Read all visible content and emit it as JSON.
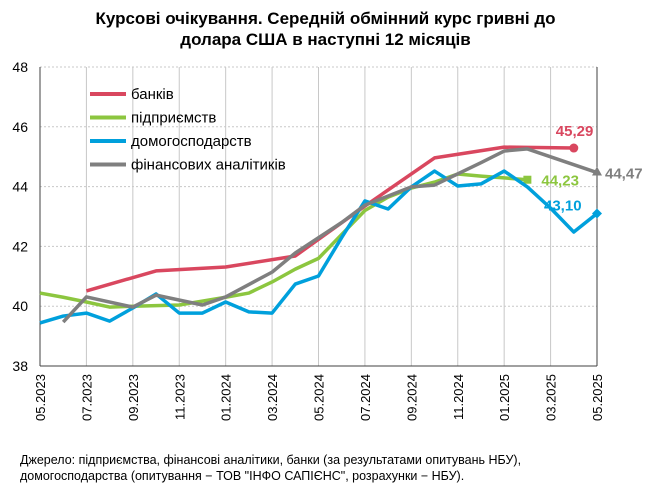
{
  "title_lines": [
    "Курсові очікування. Середній обмінний курс гривні до",
    "долара США в наступні 12 місяців"
  ],
  "footnote_lines": [
    "Джерело: підприємства, фінансові аналітики, банки (за результатами опитувань НБУ),",
    "домогосподарства (опитування − ТОВ \"ІНФО САПІЄНС\", розрахунки − НБУ)."
  ],
  "chart_data": {
    "type": "line",
    "x": [
      "05.2023",
      "06.2023",
      "07.2023",
      "08.2023",
      "09.2023",
      "10.2023",
      "11.2023",
      "12.2023",
      "01.2024",
      "02.2024",
      "03.2024",
      "04.2024",
      "05.2024",
      "06.2024",
      "07.2024",
      "08.2024",
      "09.2024",
      "10.2024",
      "11.2024",
      "12.2024",
      "01.2025",
      "02.2025",
      "03.2025",
      "04.2025",
      "05.2025"
    ],
    "x_tick_labels": [
      "05.2023",
      "07.2023",
      "09.2023",
      "11.2023",
      "01.2024",
      "03.2024",
      "05.2024",
      "07.2024",
      "09.2024",
      "11.2024",
      "01.2025",
      "03.2025",
      "05.2025"
    ],
    "ylim": [
      38,
      48
    ],
    "y_ticks": [
      38,
      40,
      42,
      44,
      46,
      48
    ],
    "grid": "horizontal dotted, vertical at labelled months",
    "legend_placement": "top-left",
    "series": [
      {
        "name": "банків",
        "color": "#d9475f",
        "end_marker": "circle",
        "end_label": "45,29",
        "values": [
          null,
          null,
          40.51,
          null,
          null,
          41.18,
          null,
          null,
          41.31,
          null,
          null,
          41.68,
          null,
          null,
          43.35,
          null,
          null,
          44.96,
          null,
          null,
          45.32,
          null,
          null,
          45.29,
          null
        ]
      },
      {
        "name": "підприємств",
        "color": "#8cc63f",
        "end_marker": "square",
        "end_label": "44,23",
        "values": [
          40.44,
          40.3,
          40.14,
          39.97,
          40.0,
          40.02,
          40.04,
          40.17,
          40.3,
          40.44,
          40.81,
          41.24,
          41.6,
          42.4,
          43.2,
          43.65,
          43.95,
          44.15,
          44.42,
          44.35,
          44.29,
          44.23,
          null,
          null,
          null
        ]
      },
      {
        "name": "домогосподарств",
        "color": "#00a0dc",
        "end_marker": "diamond",
        "end_label": "43,10",
        "values": [
          39.44,
          39.67,
          39.77,
          39.5,
          39.94,
          40.41,
          39.77,
          39.77,
          40.14,
          39.81,
          39.77,
          40.74,
          41.01,
          42.3,
          43.52,
          43.25,
          43.99,
          44.52,
          44.02,
          44.09,
          44.52,
          43.99,
          43.28,
          42.48,
          43.1
        ]
      },
      {
        "name": "фінансових аналітиків",
        "color": "#7f7f7f",
        "end_marker": "triangle",
        "end_label": "44,47",
        "values": [
          null,
          39.47,
          40.31,
          null,
          39.97,
          40.37,
          null,
          40.04,
          40.31,
          null,
          41.14,
          41.78,
          null,
          42.8,
          43.38,
          null,
          43.99,
          44.05,
          null,
          44.8,
          45.19,
          45.26,
          null,
          null,
          44.47
        ]
      }
    ]
  }
}
